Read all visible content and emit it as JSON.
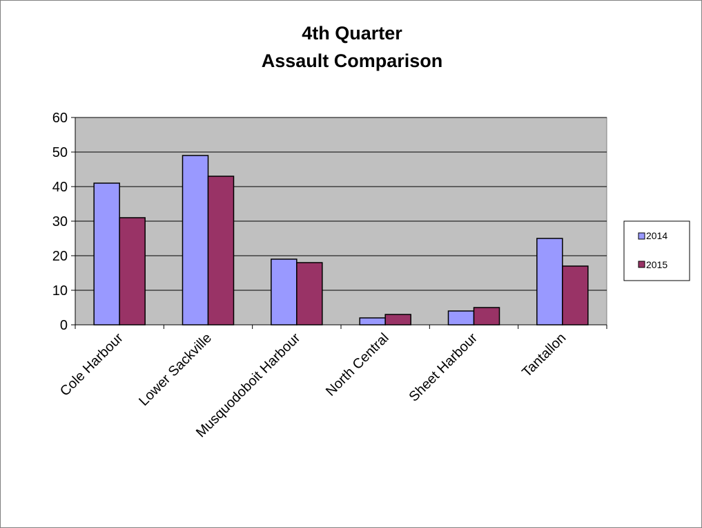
{
  "chart_data": {
    "type": "bar",
    "title_lines": [
      "4th Quarter",
      "Assault Comparison"
    ],
    "categories": [
      "Cole Harbour",
      "Lower Sackville",
      "Musquodoboit Harbour",
      "North Central",
      "Sheet Harbour",
      "Tantallon"
    ],
    "series": [
      {
        "name": "2014",
        "values": [
          41,
          49,
          19,
          2,
          4,
          25
        ],
        "color": "#9999ff"
      },
      {
        "name": "2015",
        "values": [
          31,
          43,
          18,
          3,
          5,
          17
        ],
        "color": "#993366"
      }
    ],
    "ylim": [
      0,
      60
    ],
    "yticks": [
      "0",
      "10",
      "20",
      "30",
      "40",
      "50",
      "60"
    ],
    "grid": true,
    "plot_background": "#c0c0c0",
    "legend_position": "right"
  }
}
